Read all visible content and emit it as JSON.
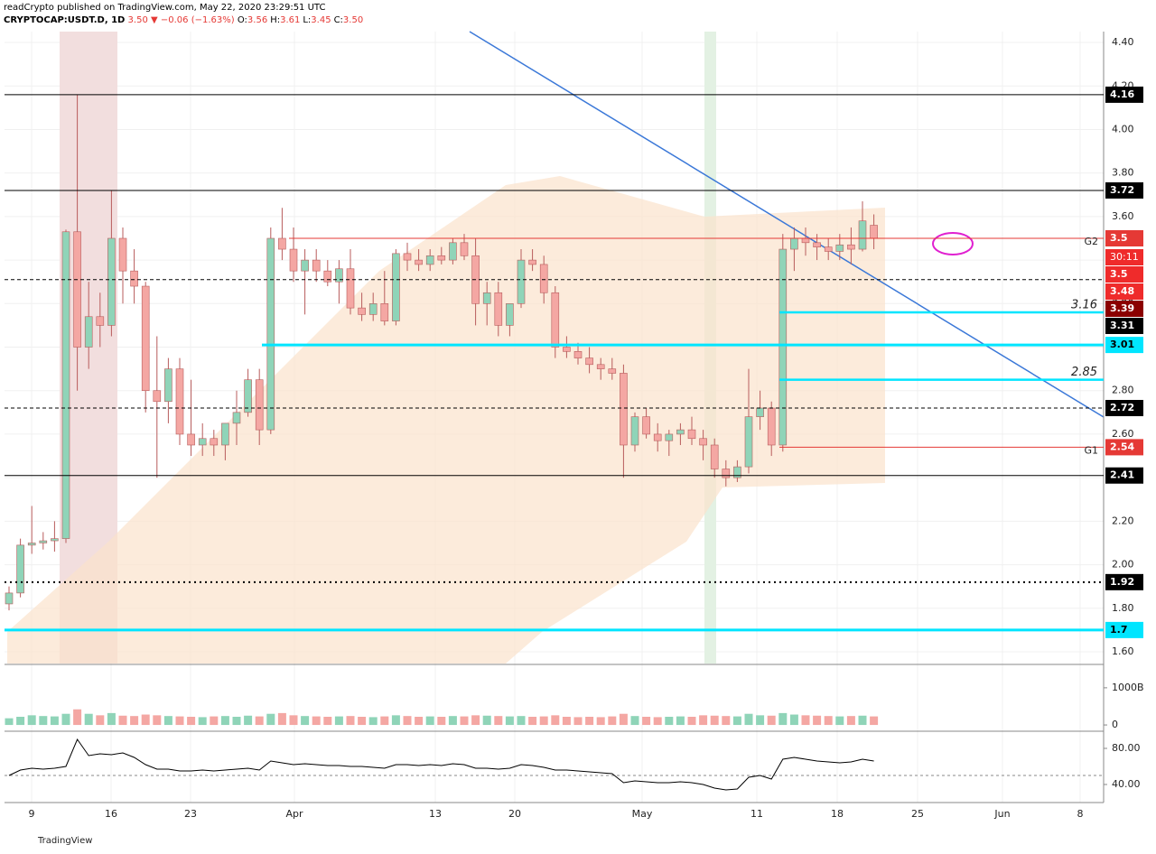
{
  "header": {
    "publisher": "readCrypto published on TradingView.com, May 22, 2020 23:29:51 UTC",
    "symbol": "CRYPTOCAP:USDT.D, 1D",
    "price": "3.50",
    "change": "▼ −0.06 (−1.63%)",
    "ohlc": [
      {
        "key": "O:",
        "value": "3.56"
      },
      {
        "key": "H:",
        "value": "3.61"
      },
      {
        "key": "L:",
        "value": "3.45"
      },
      {
        "key": "C:",
        "value": "3.50"
      }
    ]
  },
  "footer": {
    "brand": "TradingView"
  },
  "chart_data": [
    {
      "type": "candlestick",
      "up_color": "#8fd4b8",
      "down_color": "#f4a7a3",
      "x_labels": [
        "9",
        "16",
        "23",
        "Apr",
        "13",
        "20",
        "May",
        "11",
        "18",
        "25",
        "Jun",
        "8"
      ],
      "open": [
        1.82,
        1.87,
        2.09,
        2.1,
        2.11,
        2.12,
        3.53,
        3.0,
        3.14,
        3.1,
        3.5,
        3.35,
        3.28,
        2.8,
        2.75,
        2.9,
        2.6,
        2.55,
        2.58,
        2.55,
        2.65,
        2.7,
        2.85,
        2.62,
        3.5,
        3.45,
        3.35,
        3.4,
        3.35,
        3.3,
        3.36,
        3.18,
        3.15,
        3.2,
        3.12,
        3.43,
        3.4,
        3.38,
        3.42,
        3.4,
        3.48,
        3.42,
        3.2,
        3.25,
        3.1,
        3.2,
        3.4,
        3.38,
        3.25,
        3.0,
        2.98,
        2.95,
        2.92,
        2.9,
        2.88,
        2.55,
        2.68,
        2.6,
        2.57,
        2.6,
        2.62,
        2.58,
        2.55,
        2.44,
        2.4,
        2.45,
        2.68,
        2.72,
        2.55,
        3.45,
        3.5,
        3.48,
        3.46,
        3.44,
        3.47,
        3.45,
        3.56
      ],
      "high": [
        1.9,
        2.12,
        2.27,
        2.15,
        2.2,
        3.54,
        4.16,
        3.3,
        3.25,
        3.72,
        3.55,
        3.45,
        3.3,
        3.05,
        2.95,
        2.95,
        2.85,
        2.65,
        2.62,
        2.65,
        2.8,
        2.9,
        2.9,
        3.55,
        3.64,
        3.55,
        3.45,
        3.45,
        3.4,
        3.4,
        3.45,
        3.25,
        3.25,
        3.35,
        3.45,
        3.48,
        3.45,
        3.45,
        3.46,
        3.5,
        3.52,
        3.5,
        3.3,
        3.3,
        3.2,
        3.45,
        3.45,
        3.42,
        3.28,
        3.05,
        3.02,
        3.0,
        2.95,
        2.95,
        2.92,
        2.7,
        2.72,
        2.65,
        2.62,
        2.65,
        2.68,
        2.62,
        2.58,
        2.48,
        2.48,
        2.9,
        2.8,
        2.75,
        3.52,
        3.55,
        3.55,
        3.52,
        3.5,
        3.52,
        3.55,
        3.67,
        3.61
      ],
      "low": [
        1.79,
        1.85,
        2.05,
        2.07,
        2.06,
        2.1,
        2.8,
        2.9,
        3.0,
        3.05,
        3.2,
        3.2,
        2.7,
        2.4,
        2.65,
        2.55,
        2.5,
        2.5,
        2.5,
        2.48,
        2.55,
        2.68,
        2.55,
        2.6,
        3.4,
        3.3,
        3.15,
        3.3,
        3.28,
        3.2,
        3.15,
        3.12,
        3.12,
        3.1,
        3.1,
        3.35,
        3.35,
        3.35,
        3.38,
        3.38,
        3.4,
        3.1,
        3.1,
        3.05,
        3.05,
        3.18,
        3.35,
        3.2,
        2.95,
        2.95,
        2.92,
        2.88,
        2.85,
        2.85,
        2.4,
        2.52,
        2.58,
        2.52,
        2.5,
        2.55,
        2.55,
        2.48,
        2.4,
        2.36,
        2.38,
        2.42,
        2.62,
        2.5,
        2.52,
        3.35,
        3.42,
        3.4,
        3.4,
        3.4,
        3.38,
        3.44,
        3.45
      ],
      "close": [
        1.87,
        2.09,
        2.1,
        2.11,
        2.12,
        3.53,
        3.0,
        3.14,
        3.1,
        3.5,
        3.35,
        3.28,
        2.8,
        2.75,
        2.9,
        2.6,
        2.55,
        2.58,
        2.55,
        2.65,
        2.7,
        2.85,
        2.62,
        3.5,
        3.45,
        3.35,
        3.4,
        3.35,
        3.3,
        3.36,
        3.18,
        3.15,
        3.2,
        3.12,
        3.43,
        3.4,
        3.38,
        3.42,
        3.4,
        3.48,
        3.42,
        3.2,
        3.25,
        3.1,
        3.2,
        3.4,
        3.38,
        3.25,
        3.0,
        2.98,
        2.95,
        2.92,
        2.9,
        2.88,
        2.55,
        2.68,
        2.6,
        2.57,
        2.6,
        2.62,
        2.58,
        2.55,
        2.44,
        2.4,
        2.45,
        2.68,
        2.72,
        2.55,
        3.45,
        3.5,
        3.48,
        3.46,
        3.44,
        3.47,
        3.45,
        3.58,
        3.5
      ],
      "ylim": [
        1.546,
        4.45
      ],
      "yticks": [
        {
          "value": 1.6,
          "label": "1.60"
        },
        {
          "value": 1.8,
          "label": "1.80"
        },
        {
          "value": 2.0,
          "label": "2.00"
        },
        {
          "value": 2.2,
          "label": "2.20"
        },
        {
          "value": 2.4,
          "label": "2.40"
        },
        {
          "value": 2.6,
          "label": "2.60"
        },
        {
          "value": 2.8,
          "label": "2.80"
        },
        {
          "value": 3.0,
          "label": "3.00"
        },
        {
          "value": 3.2,
          "label": "3.20"
        },
        {
          "value": 3.4,
          "label": "3.40"
        },
        {
          "value": 3.6,
          "label": "3.60"
        },
        {
          "value": 3.8,
          "label": "3.80"
        },
        {
          "value": 4.0,
          "label": "4.00"
        },
        {
          "value": 4.2,
          "label": "4.20"
        },
        {
          "value": 4.4,
          "label": "4.40"
        }
      ],
      "price_lines": [
        {
          "value": 4.16,
          "color": "#000000",
          "style": "solid"
        },
        {
          "value": 3.72,
          "color": "#000000",
          "style": "solid"
        },
        {
          "value": 3.5,
          "color": "#e53935",
          "style": "solid",
          "tag": "G2"
        },
        {
          "value": 3.31,
          "color": "#000000",
          "style": "dashed"
        },
        {
          "value": 3.16,
          "color": "#00e5ff",
          "style": "note"
        },
        {
          "value": 3.01,
          "color": "#00e5ff",
          "style": "thick"
        },
        {
          "value": 2.85,
          "color": "#00e5ff",
          "style": "note"
        },
        {
          "value": 2.72,
          "color": "#000000",
          "style": "dashed"
        },
        {
          "value": 2.54,
          "color": "#e53935",
          "style": "solid",
          "tag": "G1"
        },
        {
          "value": 2.41,
          "color": "#000000",
          "style": "solid"
        },
        {
          "value": 1.92,
          "color": "#000000",
          "style": "dotted"
        },
        {
          "value": 1.7,
          "color": "#00e5ff",
          "style": "thick"
        }
      ],
      "price_labels": [
        {
          "value": 3.5,
          "color": "#ef2b2b",
          "countdown": "30:11"
        },
        {
          "value": 3.48,
          "color": "#ef2b2b"
        },
        {
          "value": 3.39,
          "color": "#8b0000"
        }
      ]
    },
    {
      "type": "bar",
      "values": [
        180,
        220,
        260,
        240,
        230,
        300,
        420,
        300,
        260,
        320,
        250,
        240,
        280,
        260,
        240,
        230,
        220,
        210,
        230,
        240,
        220,
        250,
        230,
        300,
        320,
        260,
        240,
        230,
        220,
        230,
        240,
        220,
        210,
        230,
        260,
        240,
        220,
        230,
        220,
        240,
        230,
        260,
        250,
        240,
        230,
        240,
        220,
        230,
        260,
        220,
        210,
        220,
        210,
        230,
        300,
        240,
        220,
        210,
        220,
        230,
        220,
        260,
        250,
        240,
        230,
        300,
        260,
        250,
        320,
        280,
        260,
        250,
        240,
        230,
        240,
        250,
        230
      ],
      "ylim": [
        -120,
        1580
      ],
      "yticks": [
        0,
        {
          "value": 1000,
          "label": "1000B"
        }
      ]
    },
    {
      "type": "line",
      "color": "#000000",
      "values": [
        50,
        56,
        58,
        57,
        58,
        60,
        90,
        72,
        74,
        73,
        75,
        70,
        62,
        57,
        57,
        55,
        55,
        56,
        55,
        56,
        57,
        58,
        56,
        66,
        64,
        62,
        63,
        62,
        61,
        61,
        60,
        60,
        59,
        58,
        62,
        62,
        61,
        62,
        61,
        63,
        62,
        58,
        58,
        57,
        58,
        62,
        61,
        59,
        56,
        56,
        55,
        54,
        53,
        52,
        42,
        44,
        43,
        42,
        42,
        43,
        42,
        40,
        36,
        34,
        35,
        48,
        50,
        46,
        68,
        70,
        68,
        66,
        65,
        64,
        65,
        68,
        66
      ],
      "ylim": [
        21,
        97
      ],
      "yticks": [
        {
          "value": 80,
          "label": "80.00"
        },
        {
          "value": 40,
          "label": "40.00"
        }
      ]
    }
  ]
}
